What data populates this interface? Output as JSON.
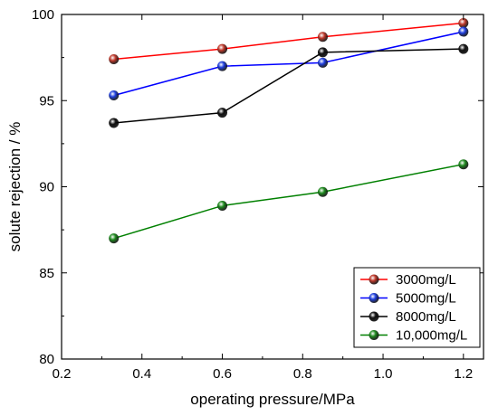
{
  "chart_data": {
    "type": "line",
    "title": "",
    "xlabel": "operating pressure/MPa",
    "ylabel": "solute rejection / %",
    "xlim": [
      0.2,
      1.25
    ],
    "ylim": [
      80,
      100
    ],
    "x_ticks": [
      "0.2",
      "0.4",
      "0.6",
      "0.8",
      "1.0",
      "1.2"
    ],
    "y_ticks": [
      "80",
      "85",
      "90",
      "95",
      "100"
    ],
    "grid": false,
    "legend_position": "bottom-right",
    "x": [
      0.33,
      0.6,
      0.85,
      1.2
    ],
    "series": [
      {
        "name": "3000mg/L",
        "line_color": "#ff0000",
        "marker_color": "#c0392b",
        "values": [
          97.4,
          98.0,
          98.7,
          99.5
        ]
      },
      {
        "name": "5000mg/L",
        "line_color": "#0000ff",
        "marker_color": "#1f3fe0",
        "values": [
          95.3,
          97.0,
          97.2,
          99.0
        ]
      },
      {
        "name": "8000mg/L",
        "line_color": "#000000",
        "marker_color": "#111111",
        "values": [
          93.7,
          94.3,
          97.8,
          98.0
        ]
      },
      {
        "name": "10,000mg/L",
        "line_color": "#008000",
        "marker_color": "#1e8b1e",
        "values": [
          87.0,
          88.9,
          89.7,
          91.3
        ]
      }
    ]
  }
}
